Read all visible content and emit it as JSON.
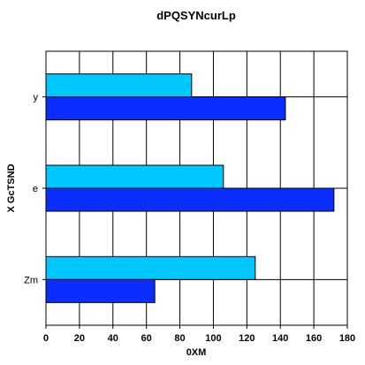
{
  "chart_data": {
    "type": "bar",
    "orientation": "horizontal",
    "title": "dPQSYNcurLp",
    "xlabel": "0XM",
    "ylabel": "X GcTSND",
    "categories": [
      "y",
      "e",
      "Zm"
    ],
    "series": [
      {
        "color": "#00c8ff",
        "values": [
          87,
          106,
          125
        ]
      },
      {
        "color": "#0a2eff",
        "values": [
          143,
          172,
          65
        ]
      }
    ],
    "xlim": [
      0,
      180
    ],
    "xticks": [
      0,
      20,
      40,
      60,
      80,
      100,
      120,
      140,
      160,
      180
    ],
    "grid": true
  }
}
